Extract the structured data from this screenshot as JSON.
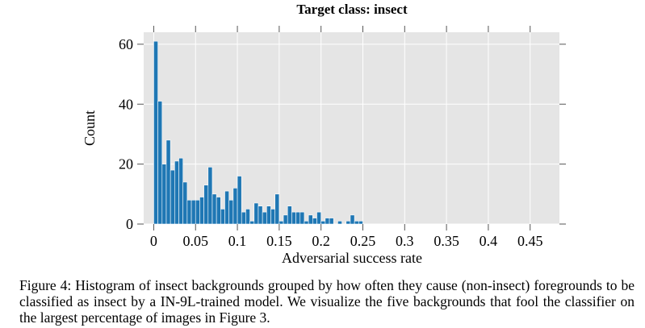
{
  "chart_data": {
    "type": "bar",
    "title": "Target class: insect",
    "xlabel": "Adversarial success rate",
    "ylabel": "Count",
    "xlim": [
      -0.012,
      0.485
    ],
    "ylim": [
      0,
      64
    ],
    "xticks": [
      0,
      0.05,
      0.1,
      0.15,
      0.2,
      0.25,
      0.3,
      0.35,
      0.4,
      0.45
    ],
    "xtick_labels": [
      "0",
      "0.05",
      "0.1",
      "0.15",
      "0.2",
      "0.25",
      "0.3",
      "0.35",
      "0.4",
      "0.45"
    ],
    "yticks": [
      0,
      20,
      40,
      60
    ],
    "ytick_labels": [
      "0",
      "20",
      "40",
      "60"
    ],
    "grid": true,
    "bin_start": 0,
    "bin_width": 0.005,
    "values": [
      61,
      41,
      20,
      28,
      18,
      21,
      22,
      14,
      8,
      8,
      8,
      9,
      13,
      19,
      10,
      9,
      5,
      11,
      8,
      12,
      16,
      4,
      5,
      1,
      7,
      6,
      4,
      6,
      5,
      10,
      1,
      3,
      6,
      4,
      4,
      4,
      1,
      3,
      2,
      4,
      1,
      2,
      2,
      0,
      1,
      0,
      1,
      3,
      1,
      1
    ],
    "colors": {
      "bar": "#1f77b4",
      "bar_edge": "#ffffff",
      "plot_bg": "#e5e5e5",
      "grid": "#ffffff"
    }
  },
  "caption": "Figure 4: Histogram of insect backgrounds grouped by how often they cause (non-insect) foregrounds to be classified as insect by a IN-9L-trained model. We visualize the five backgrounds that fool the classifier on the largest percentage of images in Figure 3."
}
